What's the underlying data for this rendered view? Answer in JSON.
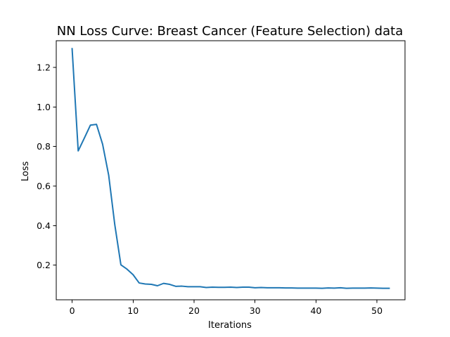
{
  "chart_data": {
    "type": "line",
    "title": "NN Loss Curve: Breast Cancer (Feature Selection) data",
    "xlabel": "Iterations",
    "ylabel": "Loss",
    "xlim": [
      -2.6,
      54.6
    ],
    "ylim": [
      0.025,
      1.335
    ],
    "xticks": [
      0,
      10,
      20,
      30,
      40,
      50
    ],
    "yticks": [
      0.2,
      0.4,
      0.6,
      0.8,
      1.0,
      1.2
    ],
    "grid": false,
    "legend": "none",
    "series": [
      {
        "color": "#1f77b4",
        "x": [
          0,
          1,
          2,
          3,
          4,
          5,
          6,
          7,
          8,
          9,
          10,
          11,
          12,
          13,
          14,
          15,
          16,
          17,
          18,
          19,
          20,
          21,
          22,
          23,
          24,
          25,
          26,
          27,
          28,
          29,
          30,
          31,
          32,
          33,
          34,
          35,
          36,
          37,
          38,
          39,
          40,
          41,
          42,
          43,
          44,
          45,
          46,
          47,
          48,
          49,
          50,
          51,
          52
        ],
        "values": [
          1.295,
          0.778,
          0.842,
          0.908,
          0.912,
          0.812,
          0.655,
          0.405,
          0.202,
          0.18,
          0.152,
          0.11,
          0.105,
          0.103,
          0.096,
          0.108,
          0.103,
          0.093,
          0.094,
          0.091,
          0.091,
          0.091,
          0.087,
          0.089,
          0.088,
          0.088,
          0.089,
          0.087,
          0.089,
          0.089,
          0.086,
          0.087,
          0.086,
          0.086,
          0.086,
          0.085,
          0.085,
          0.084,
          0.084,
          0.084,
          0.084,
          0.083,
          0.085,
          0.084,
          0.086,
          0.083,
          0.084,
          0.084,
          0.084,
          0.085,
          0.084,
          0.083,
          0.083
        ]
      }
    ]
  }
}
